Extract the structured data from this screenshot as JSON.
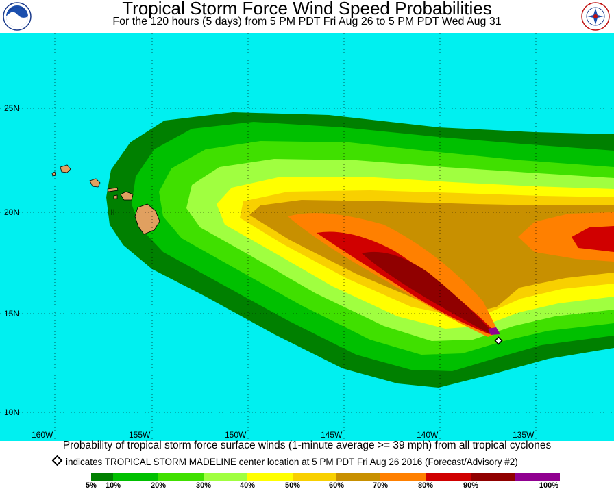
{
  "title": "Tropical Storm Force Wind Speed Probabilities",
  "subtitle": "For the 120 hours (5 days) from 5 PM PDT Fri Aug 26 to 5 PM PDT Wed Aug 31",
  "logos": {
    "left": "noaa-logo",
    "right": "national-weather-service-logo"
  },
  "map": {
    "ocean_color": "#00f0f0",
    "land_color": "#e0a060",
    "island_label": "HI",
    "lat_labels": [
      "25N",
      "20N",
      "15N",
      "10N"
    ],
    "lon_labels": [
      "160W",
      "155W",
      "150W",
      "145W",
      "140W",
      "135W"
    ],
    "storm_marker": "diamond-marker"
  },
  "caption": "Probability of tropical storm force surface winds (1-minute average >= 39 mph) from all tropical cyclones",
  "marker_note": "indicates TROPICAL STORM MADELINE center location at 5 PM PDT Fri Aug 26 2016 (Forecast/Advisory #2)",
  "legend": {
    "colors": [
      "#008000",
      "#00c000",
      "#40e000",
      "#a0ff40",
      "#ffff00",
      "#f8d000",
      "#c89000",
      "#ff8000",
      "#d00000",
      "#900000",
      "#900090"
    ],
    "labels": [
      "5%",
      "10%",
      "20%",
      "30%",
      "40%",
      "50%",
      "60%",
      "70%",
      "80%",
      "90%",
      "100%"
    ]
  }
}
